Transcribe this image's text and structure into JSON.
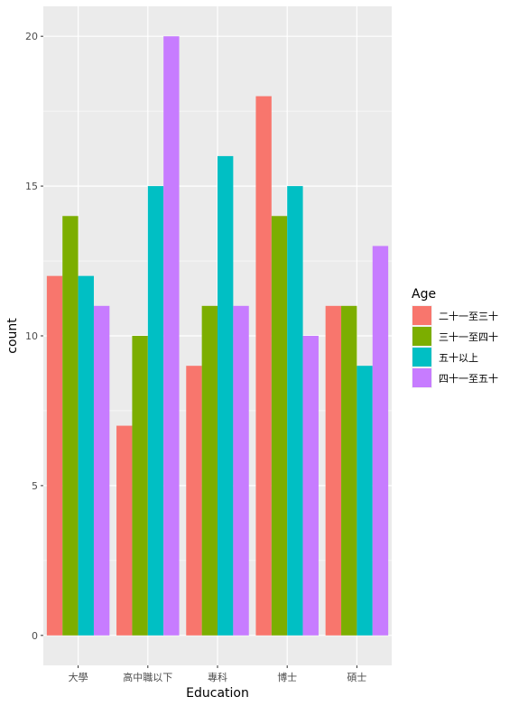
{
  "chart_data": {
    "type": "bar",
    "title": "",
    "xlabel": "Education",
    "ylabel": "count",
    "categories": [
      "大學",
      "高中職以下",
      "專科",
      "博士",
      "碩士"
    ],
    "series": [
      {
        "name": "二十一至三十",
        "color": "#F8766D",
        "values": [
          12,
          7,
          9,
          18,
          11
        ]
      },
      {
        "name": "三十一至四十",
        "color": "#7CAE00",
        "values": [
          14,
          10,
          11,
          14,
          11
        ]
      },
      {
        "name": "五十以上",
        "color": "#00BFC4",
        "values": [
          12,
          15,
          16,
          15,
          9
        ]
      },
      {
        "name": "四十一至五十",
        "color": "#C77CFF",
        "values": [
          11,
          20,
          11,
          10,
          13
        ]
      }
    ],
    "ylim": [
      -1,
      21
    ],
    "yticks": [
      0,
      5,
      10,
      15,
      20
    ],
    "grid": true,
    "legend": {
      "title": "Age",
      "position": "right"
    }
  }
}
